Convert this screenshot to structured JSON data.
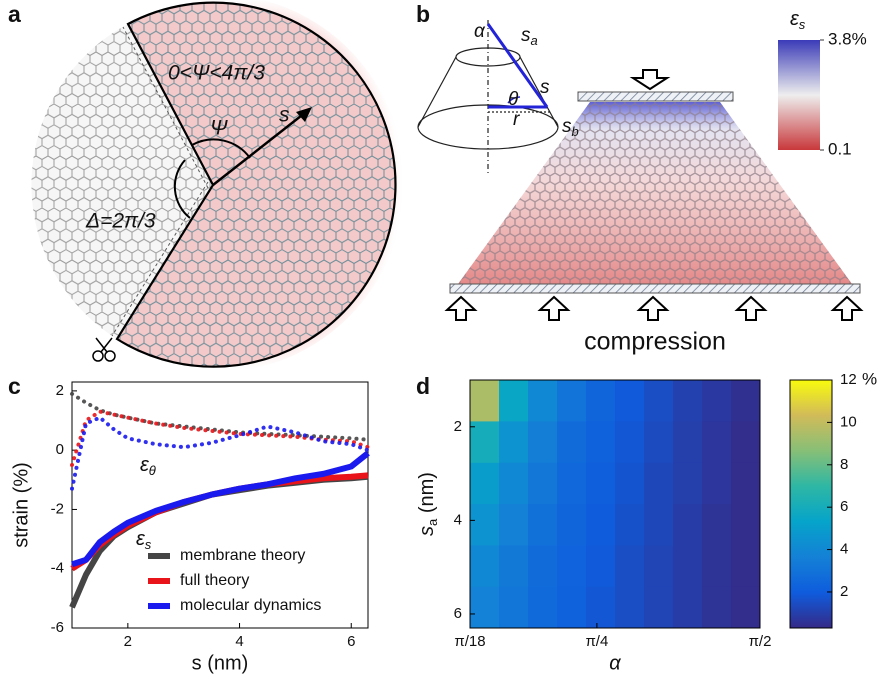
{
  "panel_labels": [
    "a",
    "b",
    "c",
    "d"
  ],
  "diagram_a": {
    "range_label": "0<Ψ<4π/3",
    "psi_label": "Ψ",
    "s_label": "s",
    "delta_label": "Δ=2π/3"
  },
  "diagram_b": {
    "labels": {
      "alpha": "α",
      "s_a": {
        "base": "s",
        "sub": "a"
      },
      "s": "s",
      "theta": "θ",
      "r": "r",
      "s_b": {
        "base": "s",
        "sub": "b"
      }
    },
    "caption": "compression",
    "colorbar": {
      "title": {
        "base": "ε",
        "sub": "s"
      },
      "clim": [
        0.1,
        3.8
      ],
      "ticks": [
        {
          "value": 3.8,
          "label": "3.8%"
        },
        0.1
      ],
      "colors": [
        "#c8383b",
        "#eeeeee",
        "#3b3bb8"
      ]
    }
  },
  "chart_data": [
    {
      "type": "line",
      "xlabel": "s (nm)",
      "ylabel": "strain (%)",
      "x": [
        1,
        1.25,
        1.5,
        1.75,
        2,
        2.5,
        3,
        3.5,
        4,
        4.5,
        5,
        5.5,
        6,
        6.3
      ],
      "xlim": [
        1,
        6.3
      ],
      "xticks": [
        2,
        4,
        6
      ],
      "ylim": [
        -6,
        2.3
      ],
      "yticks": [
        -6,
        -4,
        -2,
        0,
        2
      ],
      "series": [
        {
          "name": "membrane theory",
          "color": "#454545",
          "values": [
            -5.3,
            -4.2,
            -3.4,
            -2.9,
            -2.6,
            -2.1,
            -1.8,
            -1.5,
            -1.35,
            -1.2,
            -1.1,
            -1.0,
            -0.95,
            -0.9
          ],
          "theta_values": [
            1.9,
            1.6,
            1.35,
            1.2,
            1.1,
            0.9,
            0.8,
            0.7,
            0.6,
            0.55,
            0.5,
            0.45,
            0.4,
            0.35
          ]
        },
        {
          "name": "full theory",
          "color": "#e8141a",
          "values": [
            -4.0,
            -3.7,
            -3.2,
            -2.85,
            -2.55,
            -2.1,
            -1.75,
            -1.5,
            -1.3,
            -1.15,
            -1.05,
            -0.95,
            -0.9,
            -0.85
          ],
          "theta_values": [
            -0.5,
            1.0,
            1.3,
            1.2,
            1.1,
            0.9,
            0.75,
            0.65,
            0.55,
            0.5,
            0.45,
            0.35,
            0.3,
            0.1
          ]
        },
        {
          "name": "molecular dynamics",
          "color": "#1a1aee",
          "values": [
            -3.85,
            -3.7,
            -3.1,
            -2.75,
            -2.45,
            -2.05,
            -1.75,
            -1.5,
            -1.3,
            -1.15,
            -0.95,
            -0.8,
            -0.55,
            -0.1
          ],
          "theta_values": [
            -1.3,
            0.9,
            1.1,
            0.7,
            0.4,
            0.2,
            0.1,
            0.25,
            0.5,
            0.8,
            0.6,
            0.3,
            0.2,
            0.0
          ]
        }
      ],
      "annotations": [
        {
          "base": "ε",
          "sub": "θ"
        },
        {
          "base": "ε",
          "sub": "s"
        }
      ]
    },
    {
      "type": "heatmap",
      "xlabel": "α",
      "ylabel": {
        "base": "s",
        "sub": "a",
        "rest": " (nm)"
      },
      "x": [
        0.2443,
        0.384,
        0.5236,
        0.6632,
        0.8029,
        0.9425,
        1.0821,
        1.2217,
        1.3614,
        1.501
      ],
      "y": [
        1.44,
        2.33,
        3.21,
        4.09,
        4.98,
        5.86
      ],
      "xlim": [
        0.1745,
        1.5708
      ],
      "xticks": [
        {
          "value": 0.1745,
          "label": "π/18"
        },
        {
          "value": 0.7854,
          "label": "π/4"
        },
        {
          "value": 1.5708,
          "label": "π/2"
        }
      ],
      "ylim": [
        1,
        6.3
      ],
      "yticks": [
        2,
        4,
        6
      ],
      "z": [
        [
          9.5,
          5.5,
          4.0,
          3.0,
          2.4,
          1.9,
          1.5,
          1.1,
          0.8,
          0.5
        ],
        [
          6.0,
          4.5,
          3.5,
          2.7,
          2.2,
          1.8,
          1.4,
          1.0,
          0.7,
          0.4
        ],
        [
          5.0,
          4.0,
          3.2,
          2.5,
          2.1,
          1.7,
          1.3,
          1.0,
          0.7,
          0.4
        ],
        [
          4.5,
          3.6,
          2.9,
          2.4,
          2.0,
          1.6,
          1.3,
          0.9,
          0.6,
          0.4
        ],
        [
          4.0,
          3.3,
          2.7,
          2.3,
          1.9,
          1.5,
          1.2,
          0.9,
          0.6,
          0.4
        ],
        [
          3.7,
          3.1,
          2.6,
          2.2,
          1.8,
          1.5,
          1.2,
          0.9,
          0.6,
          0.4
        ]
      ],
      "clim": [
        0.3,
        12
      ],
      "cticks": [
        2,
        4,
        6,
        8,
        10,
        12
      ],
      "colorbar_unit": "%",
      "colormap": [
        "#352a87",
        "#0f5cdd",
        "#1481d6",
        "#06a4ca",
        "#2eb7a4",
        "#87bf77",
        "#d1bb59",
        "#f9fb0e"
      ]
    }
  ]
}
